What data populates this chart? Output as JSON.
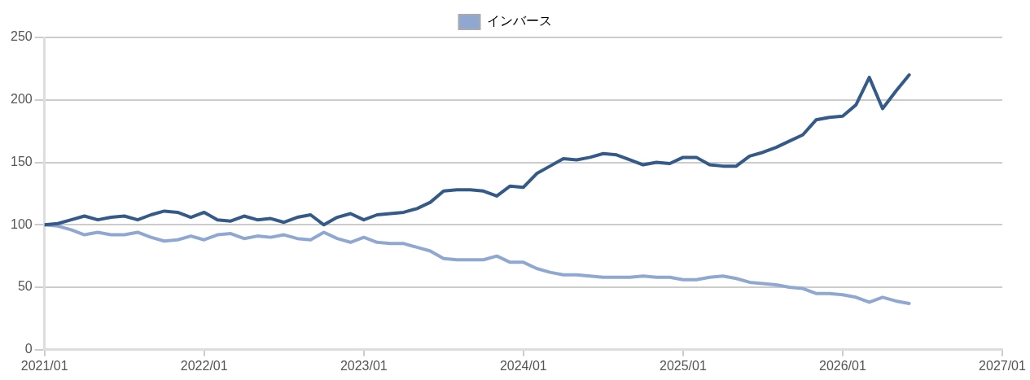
{
  "chart_data": {
    "type": "line",
    "x": [
      "2021-01",
      "2021-02",
      "2021-03",
      "2021-04",
      "2021-05",
      "2021-06",
      "2021-07",
      "2021-08",
      "2021-09",
      "2021-10",
      "2021-11",
      "2021-12",
      "2022-01",
      "2022-02",
      "2022-03",
      "2022-04",
      "2022-05",
      "2022-06",
      "2022-07",
      "2022-08",
      "2022-09",
      "2022-10",
      "2022-11",
      "2022-12",
      "2023-01",
      "2023-02",
      "2023-03",
      "2023-04",
      "2023-05",
      "2023-06",
      "2023-07",
      "2023-08",
      "2023-09",
      "2023-10",
      "2023-11",
      "2023-12",
      "2024-01",
      "2024-02",
      "2024-03",
      "2024-04",
      "2024-05",
      "2024-06",
      "2024-07",
      "2024-08",
      "2024-09",
      "2024-10",
      "2024-11",
      "2024-12",
      "2025-01",
      "2025-02",
      "2025-03",
      "2025-04",
      "2025-05",
      "2025-06",
      "2025-07",
      "2025-08",
      "2025-09",
      "2025-10",
      "2025-11",
      "2025-12",
      "2026-01",
      "2026-02",
      "2026-03",
      "2026-04",
      "2026-05",
      "2026-06"
    ],
    "series": [
      {
        "color": "#345a8a",
        "values": [
          100,
          101,
          104,
          107,
          104,
          106,
          107,
          104,
          108,
          111,
          110,
          106,
          110,
          104,
          103,
          107,
          104,
          105,
          102,
          106,
          108,
          100,
          106,
          109,
          104,
          108,
          109,
          110,
          113,
          118,
          127,
          128,
          128,
          127,
          123,
          131,
          130,
          141,
          147,
          153,
          152,
          154,
          157,
          156,
          152,
          148,
          150,
          149,
          154,
          154,
          148,
          147,
          147,
          155,
          158,
          162,
          167,
          172,
          184,
          186,
          187,
          196,
          218,
          193,
          207,
          220
        ]
      },
      {
        "name": "インバース",
        "color": "#8fa8d2",
        "values": [
          100,
          99,
          96,
          92,
          94,
          92,
          92,
          94,
          90,
          87,
          88,
          91,
          88,
          92,
          93,
          89,
          91,
          90,
          92,
          89,
          88,
          94,
          89,
          86,
          90,
          86,
          85,
          85,
          82,
          79,
          73,
          72,
          72,
          72,
          75,
          70,
          70,
          65,
          62,
          60,
          60,
          59,
          58,
          58,
          58,
          59,
          58,
          58,
          56,
          56,
          58,
          59,
          57,
          54,
          53,
          52,
          50,
          49,
          45,
          45,
          44,
          42,
          38,
          42,
          39,
          37
        ]
      }
    ],
    "xlim": [
      "2021-01",
      "2027-01"
    ],
    "xticks": [
      {
        "value": "2021-01",
        "label": "2021/01"
      },
      {
        "value": "2022-01",
        "label": "2022/01"
      },
      {
        "value": "2023-01",
        "label": "2023/01"
      },
      {
        "value": "2024-01",
        "label": "2024/01"
      },
      {
        "value": "2025-01",
        "label": "2025/01"
      },
      {
        "value": "2026-01",
        "label": "2026/01"
      },
      {
        "value": "2027-01",
        "label": "2027/01"
      }
    ],
    "ylim": [
      0,
      250
    ],
    "yticks": [
      0,
      50,
      100,
      150,
      200,
      250
    ],
    "grid": "y",
    "legend": "top",
    "marker": "none",
    "line_style": "solid"
  }
}
